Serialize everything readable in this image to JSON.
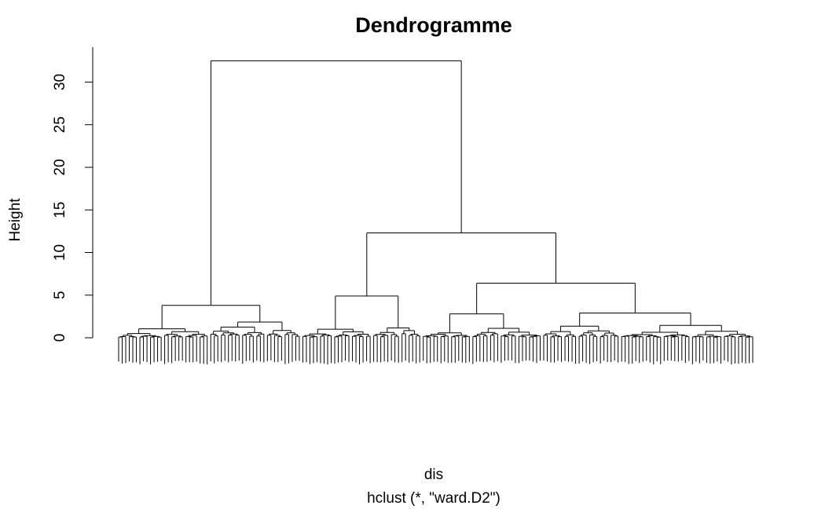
{
  "chart_data": {
    "type": "dendrogram",
    "title": "Dendrogramme",
    "xlabel": "dis",
    "sublabel": "hclust (*, \"ward.D2\")",
    "ylabel": "Height",
    "ylim": [
      0,
      33
    ],
    "yticks": [
      0,
      5,
      10,
      15,
      20,
      25,
      30
    ],
    "main_merges": [
      {
        "name": "root",
        "height": 32.5
      },
      {
        "name": "right-group",
        "height": 12.3
      },
      {
        "name": "right-right-group",
        "height": 6.4
      },
      {
        "name": "middle-group",
        "height": 4.9
      },
      {
        "name": "left-group",
        "height": 3.8
      }
    ],
    "leaf_count": 180
  }
}
